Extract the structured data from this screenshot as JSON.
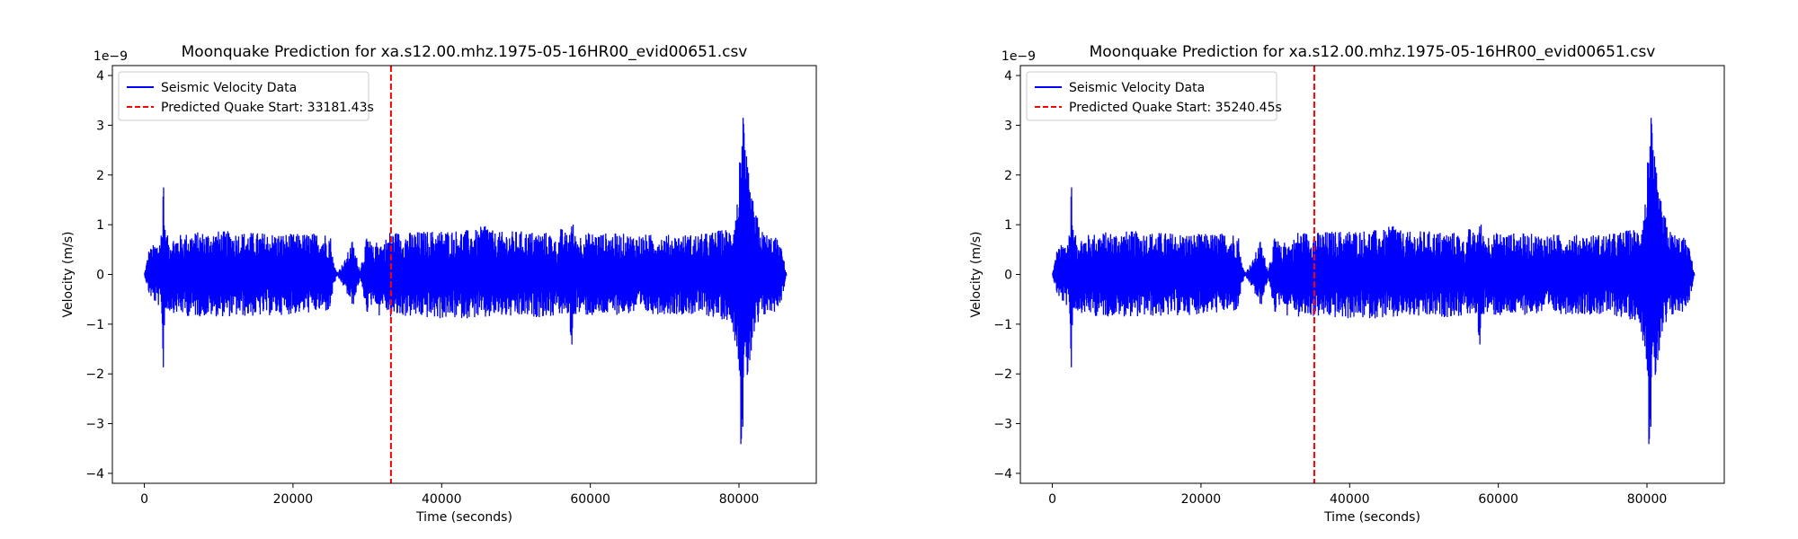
{
  "chart_data": [
    {
      "type": "line",
      "title": "Moonquake Prediction for xa.s12.00.mhz.1975-05-16HR00_evid00651.csv",
      "xlabel": "Time (seconds)",
      "ylabel": "Velocity (m/s)",
      "y_offset_text": "1e−9",
      "xlim": [
        -4300,
        90400
      ],
      "ylim": [
        -4.2,
        4.2
      ],
      "x_ticks": [
        0,
        20000,
        40000,
        60000,
        80000
      ],
      "x_tick_labels": [
        "0",
        "20000",
        "40000",
        "60000",
        "80000"
      ],
      "y_ticks": [
        -4,
        -3,
        -2,
        -1,
        0,
        1,
        2,
        3,
        4
      ],
      "y_tick_labels": [
        "−4",
        "−3",
        "−2",
        "−1",
        "0",
        "1",
        "2",
        "3",
        "4"
      ],
      "grid": false,
      "legend_position": "upper-left",
      "series": [
        {
          "name": "Seismic Velocity Data",
          "color": "#0000ff",
          "style": "solid",
          "envelope": {
            "x": [
              0,
              600,
              1200,
              2000,
              2400,
              2550,
              2700,
              3200,
              6000,
              10000,
              15000,
              20000,
              25000,
              25500,
              26000,
              27000,
              28000,
              29000,
              30000,
              31000,
              31500,
              32000,
              33000,
              35000,
              40000,
              45000,
              46000,
              47000,
              50000,
              55000,
              55500,
              56000,
              57000,
              57500,
              58000,
              60000,
              65000,
              70000,
              75000,
              79000,
              80000,
              80300,
              80500,
              80700,
              81000,
              81500,
              82000,
              83000,
              84000,
              85000,
              85800,
              86400
            ],
            "upper": [
              0.0,
              0.5,
              0.6,
              0.7,
              1.0,
              2.72,
              1.0,
              0.75,
              0.85,
              0.88,
              0.85,
              0.82,
              0.85,
              0.2,
              0.05,
              0.3,
              0.7,
              0.1,
              0.8,
              0.5,
              0.85,
              0.6,
              0.88,
              0.85,
              0.9,
              0.9,
              1.12,
              0.85,
              0.88,
              0.85,
              0.6,
              0.95,
              0.8,
              1.18,
              0.8,
              0.85,
              0.82,
              0.8,
              0.82,
              0.95,
              1.8,
              3.85,
              3.3,
              2.9,
              2.4,
              1.8,
              1.4,
              0.9,
              0.8,
              0.75,
              0.5,
              0.0
            ],
            "lower": [
              0.0,
              -0.4,
              -0.55,
              -0.65,
              -0.9,
              -2.85,
              -0.95,
              -0.75,
              -0.85,
              -0.85,
              -0.85,
              -0.8,
              -0.75,
              -0.2,
              -0.05,
              -0.3,
              -0.7,
              -0.1,
              -0.8,
              -0.5,
              -0.9,
              -0.6,
              -0.88,
              -0.85,
              -0.9,
              -0.88,
              -0.92,
              -0.85,
              -0.88,
              -0.85,
              -0.6,
              -0.9,
              -0.8,
              -1.5,
              -0.8,
              -0.85,
              -0.8,
              -0.8,
              -0.82,
              -0.95,
              -1.8,
              -3.8,
              -3.2,
              -2.9,
              -2.4,
              -1.8,
              -1.4,
              -0.9,
              -0.8,
              -0.75,
              -0.5,
              0.0
            ]
          }
        },
        {
          "name": "Predicted Quake Start: 33181.43s",
          "color": "#ff0000",
          "style": "dashed",
          "vline_x": 33181.43
        }
      ]
    },
    {
      "type": "line",
      "title": "Moonquake Prediction for xa.s12.00.mhz.1975-05-16HR00_evid00651.csv",
      "xlabel": "Time (seconds)",
      "ylabel": "Velocity (m/s)",
      "y_offset_text": "1e−9",
      "xlim": [
        -4300,
        90400
      ],
      "ylim": [
        -4.2,
        4.2
      ],
      "x_ticks": [
        0,
        20000,
        40000,
        60000,
        80000
      ],
      "x_tick_labels": [
        "0",
        "20000",
        "40000",
        "60000",
        "80000"
      ],
      "y_ticks": [
        -4,
        -3,
        -2,
        -1,
        0,
        1,
        2,
        3,
        4
      ],
      "y_tick_labels": [
        "−4",
        "−3",
        "−2",
        "−1",
        "0",
        "1",
        "2",
        "3",
        "4"
      ],
      "grid": false,
      "legend_position": "upper-left",
      "series": [
        {
          "name": "Seismic Velocity Data",
          "color": "#0000ff",
          "style": "solid",
          "envelope": {
            "x": [
              0,
              600,
              1200,
              2000,
              2400,
              2550,
              2700,
              3200,
              6000,
              10000,
              15000,
              20000,
              25000,
              25500,
              26000,
              27000,
              28000,
              29000,
              30000,
              31000,
              31500,
              32000,
              33000,
              35000,
              40000,
              45000,
              46000,
              47000,
              50000,
              55000,
              55500,
              56000,
              57000,
              57500,
              58000,
              60000,
              65000,
              70000,
              75000,
              79000,
              80000,
              80300,
              80500,
              80700,
              81000,
              81500,
              82000,
              83000,
              84000,
              85000,
              85800,
              86400
            ],
            "upper": [
              0.0,
              0.5,
              0.6,
              0.7,
              1.0,
              2.72,
              1.0,
              0.75,
              0.85,
              0.88,
              0.85,
              0.82,
              0.85,
              0.2,
              0.05,
              0.3,
              0.7,
              0.1,
              0.8,
              0.5,
              0.85,
              0.6,
              0.88,
              0.85,
              0.9,
              0.9,
              1.12,
              0.85,
              0.88,
              0.85,
              0.6,
              0.95,
              0.8,
              1.18,
              0.8,
              0.85,
              0.82,
              0.8,
              0.82,
              0.95,
              1.8,
              3.85,
              3.3,
              2.9,
              2.4,
              1.8,
              1.4,
              0.9,
              0.8,
              0.75,
              0.5,
              0.0
            ],
            "lower": [
              0.0,
              -0.4,
              -0.55,
              -0.65,
              -0.9,
              -2.85,
              -0.95,
              -0.75,
              -0.85,
              -0.85,
              -0.85,
              -0.8,
              -0.75,
              -0.2,
              -0.05,
              -0.3,
              -0.7,
              -0.1,
              -0.8,
              -0.5,
              -0.9,
              -0.6,
              -0.88,
              -0.85,
              -0.9,
              -0.88,
              -0.92,
              -0.85,
              -0.88,
              -0.85,
              -0.6,
              -0.9,
              -0.8,
              -1.5,
              -0.8,
              -0.85,
              -0.8,
              -0.8,
              -0.82,
              -0.95,
              -1.8,
              -3.8,
              -3.2,
              -2.9,
              -2.4,
              -1.8,
              -1.4,
              -0.9,
              -0.8,
              -0.75,
              -0.5,
              0.0
            ]
          }
        },
        {
          "name": "Predicted Quake Start: 35240.45s",
          "color": "#ff0000",
          "style": "dashed",
          "vline_x": 35240.45
        }
      ]
    }
  ]
}
